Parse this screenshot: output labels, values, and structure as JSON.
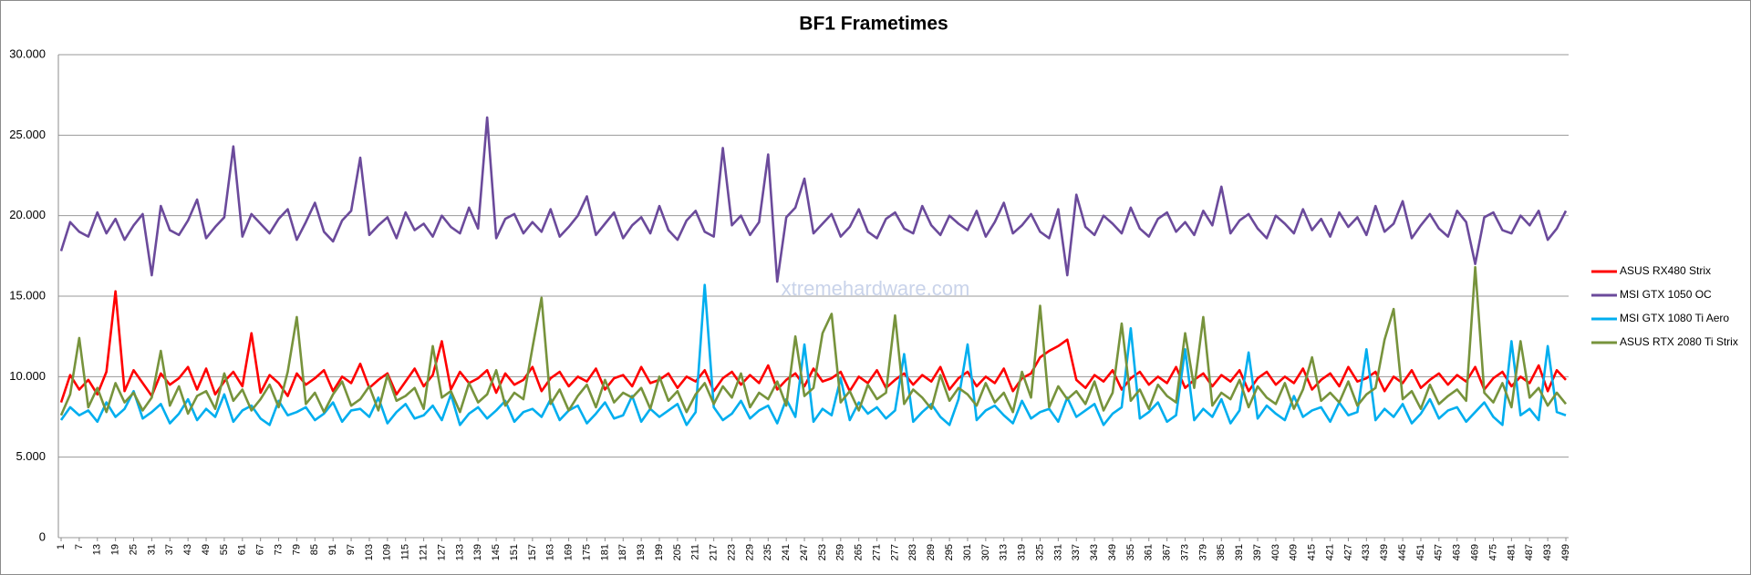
{
  "chart_data": {
    "type": "line",
    "title": "BF1 Frametimes",
    "watermark": "xtremehardware.com",
    "grid": true,
    "legend": "right",
    "ylim": [
      0,
      30
    ],
    "yticks": [
      0,
      {
        "value": 5,
        "label": "5.000"
      },
      {
        "value": 10,
        "label": "10.000"
      },
      {
        "value": 15,
        "label": "15.000"
      },
      {
        "value": 20,
        "label": "20.000"
      },
      {
        "value": 25,
        "label": "25.000"
      },
      {
        "value": 30,
        "label": "30.000"
      }
    ],
    "xlim": [
      1,
      499
    ],
    "xticks": [
      1,
      7,
      13,
      19,
      25,
      31,
      37,
      43,
      49,
      55,
      61,
      67,
      73,
      79,
      85,
      91,
      97,
      103,
      109,
      115,
      121,
      127,
      133,
      139,
      145,
      151,
      157,
      163,
      169,
      175,
      181,
      187,
      193,
      199,
      205,
      211,
      217,
      223,
      229,
      235,
      241,
      247,
      253,
      259,
      265,
      271,
      277,
      283,
      289,
      295,
      301,
      307,
      313,
      319,
      325,
      331,
      337,
      343,
      349,
      355,
      361,
      367,
      373,
      379,
      385,
      391,
      397,
      403,
      409,
      415,
      421,
      427,
      433,
      439,
      445,
      451,
      457,
      463,
      469,
      475,
      481,
      487,
      493,
      499
    ],
    "x": [
      1,
      4,
      7,
      10,
      13,
      16,
      19,
      22,
      25,
      28,
      31,
      34,
      37,
      40,
      43,
      46,
      49,
      52,
      55,
      58,
      61,
      64,
      67,
      70,
      73,
      76,
      79,
      82,
      85,
      88,
      91,
      94,
      97,
      100,
      103,
      106,
      109,
      112,
      115,
      118,
      121,
      124,
      127,
      130,
      133,
      136,
      139,
      142,
      145,
      148,
      151,
      154,
      157,
      160,
      163,
      166,
      169,
      172,
      175,
      178,
      181,
      184,
      187,
      190,
      193,
      196,
      199,
      202,
      205,
      208,
      211,
      214,
      217,
      220,
      223,
      226,
      229,
      232,
      235,
      238,
      241,
      244,
      247,
      250,
      253,
      256,
      259,
      262,
      265,
      268,
      271,
      274,
      277,
      280,
      283,
      286,
      289,
      292,
      295,
      298,
      301,
      304,
      307,
      310,
      313,
      316,
      319,
      322,
      325,
      328,
      331,
      334,
      337,
      340,
      343,
      346,
      349,
      352,
      355,
      358,
      361,
      364,
      367,
      370,
      373,
      376,
      379,
      382,
      385,
      388,
      391,
      394,
      397,
      400,
      403,
      406,
      409,
      412,
      415,
      418,
      421,
      424,
      427,
      430,
      433,
      436,
      439,
      442,
      445,
      448,
      451,
      454,
      457,
      460,
      463,
      466,
      469,
      472,
      475,
      478,
      481,
      484,
      487,
      490,
      493,
      496,
      499
    ],
    "series": [
      {
        "name": "ASUS RX480 Strix",
        "color": "#ff0000",
        "values": [
          8.4,
          10.1,
          9.2,
          9.8,
          8.9,
          10.3,
          15.3,
          9.1,
          10.4,
          9.6,
          8.8,
          10.2,
          9.5,
          9.9,
          10.6,
          9.2,
          10.5,
          8.9,
          9.7,
          10.3,
          9.4,
          12.7,
          9.0,
          10.1,
          9.6,
          8.8,
          10.2,
          9.5,
          9.9,
          10.4,
          9.1,
          10.0,
          9.6,
          10.8,
          9.3,
          9.8,
          10.2,
          8.9,
          9.7,
          10.5,
          9.4,
          10.1,
          12.2,
          9.2,
          10.3,
          9.6,
          9.9,
          10.4,
          9.0,
          10.2,
          9.5,
          9.8,
          10.6,
          9.1,
          9.9,
          10.3,
          9.4,
          10.0,
          9.7,
          10.5,
          9.2,
          9.9,
          10.1,
          9.4,
          10.6,
          9.6,
          9.8,
          10.2,
          9.3,
          10.0,
          9.7,
          10.4,
          9.1,
          9.9,
          10.3,
          9.5,
          10.1,
          9.6,
          10.7,
          9.2,
          9.8,
          10.2,
          9.4,
          10.5,
          9.7,
          9.9,
          10.3,
          9.1,
          10.0,
          9.6,
          10.4,
          9.3,
          9.8,
          10.2,
          9.5,
          10.1,
          9.7,
          10.6,
          9.2,
          9.9,
          10.3,
          9.4,
          10.0,
          9.6,
          10.5,
          9.1,
          9.9,
          10.2,
          11.2,
          11.6,
          11.9,
          12.3,
          9.8,
          9.3,
          10.1,
          9.7,
          10.4,
          9.2,
          9.9,
          10.3,
          9.5,
          10.0,
          9.6,
          10.6,
          9.3,
          9.8,
          10.2,
          9.4,
          10.1,
          9.7,
          10.4,
          9.1,
          9.9,
          10.3,
          9.5,
          10.0,
          9.6,
          10.5,
          9.2,
          9.8,
          10.2,
          9.4,
          10.6,
          9.7,
          9.9,
          10.3,
          9.1,
          10.0,
          9.6,
          10.4,
          9.3,
          9.8,
          10.2,
          9.5,
          10.1,
          9.7,
          10.6,
          9.2,
          9.9,
          10.3,
          9.4,
          10.0,
          9.6,
          10.7,
          9.1,
          10.4,
          9.8
        ]
      },
      {
        "name": "MSI GTX 1050 OC",
        "color": "#6b4a9b",
        "values": [
          17.8,
          19.6,
          19.0,
          18.7,
          20.2,
          18.9,
          19.8,
          18.5,
          19.4,
          20.1,
          16.3,
          20.6,
          19.1,
          18.8,
          19.7,
          21.0,
          18.6,
          19.3,
          19.9,
          24.3,
          18.7,
          20.1,
          19.5,
          18.9,
          19.8,
          20.4,
          18.5,
          19.6,
          20.8,
          19.0,
          18.4,
          19.7,
          20.3,
          23.6,
          18.8,
          19.4,
          19.9,
          18.6,
          20.2,
          19.1,
          19.5,
          18.7,
          20.0,
          19.3,
          18.9,
          20.5,
          19.2,
          26.1,
          18.6,
          19.8,
          20.1,
          18.9,
          19.6,
          19.0,
          20.4,
          18.7,
          19.3,
          20.0,
          21.2,
          18.8,
          19.5,
          20.2,
          18.6,
          19.4,
          19.9,
          18.9,
          20.6,
          19.1,
          18.5,
          19.7,
          20.3,
          19.0,
          18.7,
          24.2,
          19.4,
          20.0,
          18.8,
          19.6,
          23.8,
          15.9,
          19.9,
          20.5,
          22.3,
          18.9,
          19.5,
          20.1,
          18.7,
          19.3,
          20.4,
          19.0,
          18.6,
          19.8,
          20.2,
          19.2,
          18.9,
          20.6,
          19.4,
          18.8,
          20.0,
          19.5,
          19.1,
          20.3,
          18.7,
          19.6,
          20.8,
          18.9,
          19.4,
          20.1,
          19.0,
          18.6,
          20.4,
          16.3,
          21.3,
          19.3,
          18.8,
          20.0,
          19.5,
          18.9,
          20.5,
          19.2,
          18.7,
          19.8,
          20.2,
          19.0,
          19.6,
          18.8,
          20.3,
          19.4,
          21.8,
          18.9,
          19.7,
          20.1,
          19.2,
          18.6,
          20.0,
          19.5,
          18.9,
          20.4,
          19.1,
          19.8,
          18.7,
          20.2,
          19.3,
          19.9,
          18.8,
          20.6,
          19.0,
          19.5,
          20.9,
          18.6,
          19.4,
          20.1,
          19.2,
          18.7,
          20.3,
          19.6,
          17.0,
          19.9,
          20.2,
          19.1,
          18.9,
          20.0,
          19.4,
          20.3,
          18.5,
          19.2,
          20.3
        ]
      },
      {
        "name": "MSI GTX 1080 Ti Aero",
        "color": "#00aeef",
        "values": [
          7.3,
          8.1,
          7.6,
          7.9,
          7.2,
          8.4,
          7.5,
          8.0,
          9.1,
          7.4,
          7.8,
          8.3,
          7.1,
          7.7,
          8.6,
          7.3,
          8.0,
          7.5,
          8.9,
          7.2,
          7.9,
          8.2,
          7.4,
          7.0,
          8.5,
          7.6,
          7.8,
          8.1,
          7.3,
          7.7,
          8.4,
          7.2,
          7.9,
          8.0,
          7.5,
          8.7,
          7.1,
          7.8,
          8.3,
          7.4,
          7.6,
          8.2,
          7.3,
          8.9,
          7.0,
          7.7,
          8.1,
          7.4,
          7.9,
          8.5,
          7.2,
          7.8,
          8.0,
          7.5,
          8.6,
          7.3,
          7.9,
          8.2,
          7.1,
          7.7,
          8.4,
          7.4,
          7.6,
          8.8,
          7.2,
          8.0,
          7.5,
          7.9,
          8.3,
          7.0,
          7.8,
          15.7,
          8.1,
          7.3,
          7.7,
          8.5,
          7.4,
          7.9,
          8.2,
          7.1,
          8.6,
          7.5,
          12.0,
          7.2,
          8.0,
          7.6,
          9.9,
          7.3,
          8.4,
          7.7,
          8.1,
          7.4,
          7.9,
          11.4,
          7.2,
          7.8,
          8.3,
          7.5,
          7.0,
          8.6,
          12.0,
          7.3,
          7.9,
          8.2,
          7.6,
          7.1,
          8.5,
          7.4,
          7.8,
          8.0,
          7.2,
          8.7,
          7.5,
          7.9,
          8.3,
          7.0,
          7.7,
          8.1,
          13.0,
          7.4,
          7.8,
          8.4,
          7.2,
          7.6,
          11.7,
          7.3,
          8.0,
          7.5,
          8.6,
          7.1,
          7.9,
          11.5,
          7.4,
          8.2,
          7.7,
          7.3,
          8.8,
          7.5,
          7.9,
          8.1,
          7.2,
          8.4,
          7.6,
          7.8,
          11.7,
          7.3,
          8.0,
          7.5,
          8.3,
          7.1,
          7.7,
          8.6,
          7.4,
          7.9,
          8.1,
          7.2,
          7.8,
          8.4,
          7.5,
          7.0,
          12.2,
          7.6,
          8.0,
          7.3,
          11.9,
          7.8,
          7.6
        ]
      },
      {
        "name": "ASUS RTX 2080 Ti Strix",
        "color": "#77933c",
        "values": [
          7.6,
          8.9,
          12.4,
          8.1,
          9.3,
          7.8,
          9.6,
          8.4,
          9.0,
          7.9,
          8.7,
          11.6,
          8.2,
          9.4,
          7.7,
          8.8,
          9.1,
          8.0,
          10.2,
          8.5,
          9.2,
          7.9,
          8.6,
          9.5,
          8.1,
          10.3,
          13.7,
          8.3,
          9.0,
          7.8,
          8.9,
          9.7,
          8.2,
          8.6,
          9.4,
          7.9,
          10.1,
          8.5,
          8.8,
          9.3,
          8.0,
          11.9,
          8.7,
          9.1,
          7.8,
          9.6,
          8.4,
          8.9,
          10.4,
          8.2,
          9.0,
          8.6,
          11.8,
          14.9,
          8.3,
          9.2,
          7.9,
          8.8,
          9.5,
          8.1,
          9.8,
          8.4,
          9.0,
          8.7,
          9.3,
          8.0,
          10.0,
          8.5,
          9.1,
          7.8,
          8.9,
          9.6,
          8.3,
          9.4,
          8.7,
          10.2,
          8.1,
          9.0,
          8.6,
          9.7,
          8.2,
          12.5,
          8.8,
          9.3,
          12.7,
          13.9,
          8.4,
          9.1,
          7.9,
          9.5,
          8.6,
          9.0,
          13.8,
          8.3,
          9.2,
          8.7,
          8.0,
          10.1,
          8.5,
          9.3,
          8.9,
          8.2,
          9.6,
          8.4,
          9.0,
          7.8,
          10.3,
          8.7,
          14.4,
          8.1,
          9.4,
          8.6,
          9.1,
          8.3,
          9.7,
          7.9,
          9.0,
          13.3,
          8.5,
          9.2,
          8.0,
          9.5,
          8.8,
          8.4,
          12.7,
          9.3,
          13.7,
          8.2,
          9.0,
          8.6,
          9.8,
          8.1,
          9.4,
          8.7,
          8.3,
          9.6,
          8.0,
          9.2,
          11.2,
          8.5,
          9.0,
          8.4,
          9.7,
          8.2,
          8.9,
          9.3,
          12.3,
          14.2,
          8.6,
          9.1,
          8.0,
          9.5,
          8.3,
          8.8,
          9.2,
          8.5,
          16.8,
          9.0,
          8.4,
          9.6,
          8.1,
          12.2,
          8.7,
          9.3,
          8.2,
          9.0,
          8.3
        ]
      }
    ]
  }
}
